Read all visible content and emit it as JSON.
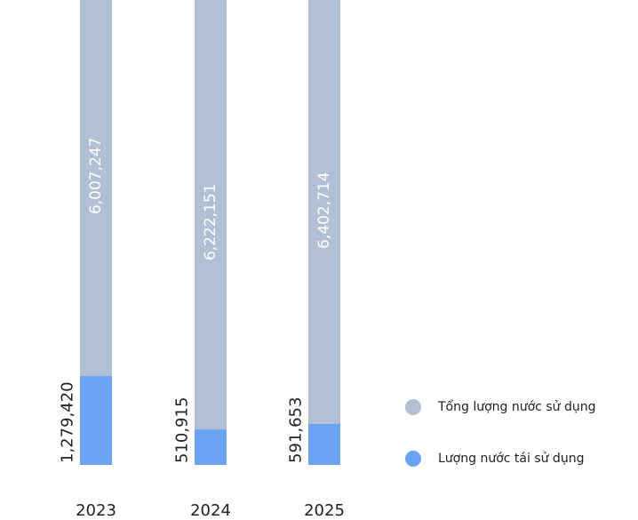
{
  "chart_data": {
    "type": "bar",
    "stacked": true,
    "categories": [
      "2023",
      "2024",
      "2025"
    ],
    "series": [
      {
        "name": "Lượng nước tái sử dụng",
        "values": [
          1279420,
          510915,
          591653
        ],
        "color": "#6aa3f2"
      },
      {
        "name": "Tổng lượng nước sử dụng",
        "values": [
          6007247,
          6222151,
          6402714
        ],
        "color": "#b1c0d4"
      }
    ],
    "value_labels": {
      "reuse": [
        "1,279,420",
        "510,915",
        "591,653"
      ],
      "total": [
        "6,007,247",
        "6,222,151",
        "6,402,714"
      ]
    },
    "legend": [
      {
        "label": "Tổng lượng nước sử dụng",
        "color": "#b1c0d4"
      },
      {
        "label": "Lượng nước tái sử dụng",
        "color": "#6aa3f2"
      }
    ],
    "legend_position": "right",
    "grid": false
  }
}
